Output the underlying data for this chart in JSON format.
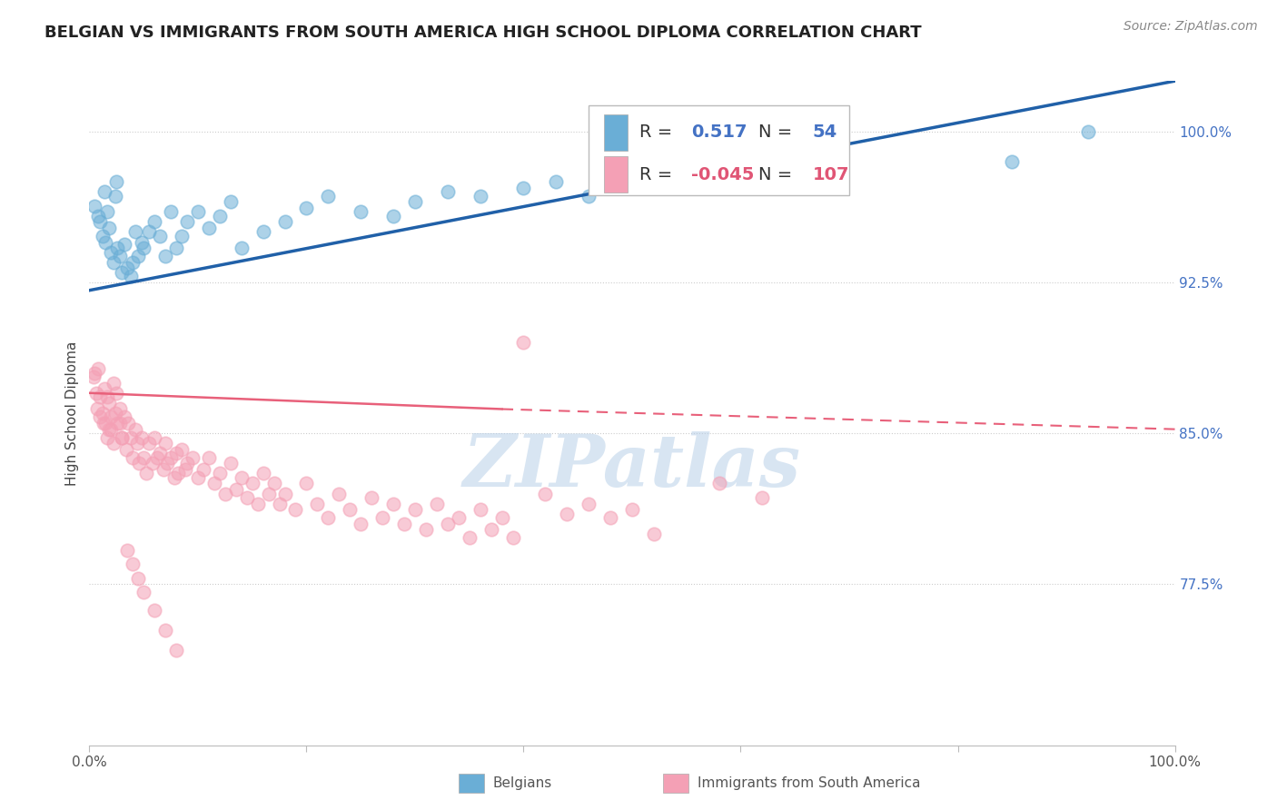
{
  "title": "BELGIAN VS IMMIGRANTS FROM SOUTH AMERICA HIGH SCHOOL DIPLOMA CORRELATION CHART",
  "source": "Source: ZipAtlas.com",
  "ylabel": "High School Diploma",
  "right_ytick_labels": [
    "100.0%",
    "92.5%",
    "85.0%",
    "77.5%"
  ],
  "right_ytick_values": [
    1.0,
    0.925,
    0.85,
    0.775
  ],
  "legend_blue_r": "0.517",
  "legend_blue_n": "54",
  "legend_pink_r": "-0.045",
  "legend_pink_n": "107",
  "blue_color": "#6aaed6",
  "pink_color": "#f4a0b5",
  "blue_line_color": "#2060a8",
  "pink_line_color": "#e8607a",
  "watermark": "ZIPatlas",
  "watermark_color": "#b8d0e8",
  "blue_scatter_x": [
    0.005,
    0.008,
    0.01,
    0.012,
    0.014,
    0.015,
    0.016,
    0.018,
    0.02,
    0.022,
    0.024,
    0.025,
    0.026,
    0.028,
    0.03,
    0.032,
    0.035,
    0.038,
    0.04,
    0.042,
    0.045,
    0.048,
    0.05,
    0.055,
    0.06,
    0.065,
    0.07,
    0.075,
    0.08,
    0.085,
    0.09,
    0.1,
    0.11,
    0.12,
    0.13,
    0.14,
    0.16,
    0.18,
    0.2,
    0.22,
    0.25,
    0.28,
    0.3,
    0.33,
    0.36,
    0.4,
    0.43,
    0.46,
    0.5,
    0.54,
    0.58,
    0.62,
    0.85,
    0.92
  ],
  "blue_scatter_y": [
    0.963,
    0.958,
    0.955,
    0.948,
    0.97,
    0.945,
    0.96,
    0.952,
    0.94,
    0.935,
    0.968,
    0.975,
    0.942,
    0.938,
    0.93,
    0.944,
    0.932,
    0.928,
    0.935,
    0.95,
    0.938,
    0.945,
    0.942,
    0.95,
    0.955,
    0.948,
    0.938,
    0.96,
    0.942,
    0.948,
    0.955,
    0.96,
    0.952,
    0.958,
    0.965,
    0.942,
    0.95,
    0.955,
    0.962,
    0.968,
    0.96,
    0.958,
    0.965,
    0.97,
    0.968,
    0.972,
    0.975,
    0.968,
    0.972,
    0.975,
    0.978,
    0.98,
    0.985,
    1.0
  ],
  "pink_scatter_x": [
    0.004,
    0.006,
    0.008,
    0.01,
    0.012,
    0.014,
    0.015,
    0.016,
    0.018,
    0.02,
    0.022,
    0.024,
    0.026,
    0.028,
    0.03,
    0.032,
    0.034,
    0.036,
    0.038,
    0.04,
    0.042,
    0.044,
    0.046,
    0.048,
    0.05,
    0.052,
    0.055,
    0.058,
    0.06,
    0.062,
    0.065,
    0.068,
    0.07,
    0.072,
    0.075,
    0.078,
    0.08,
    0.082,
    0.085,
    0.088,
    0.09,
    0.095,
    0.1,
    0.105,
    0.11,
    0.115,
    0.12,
    0.125,
    0.13,
    0.135,
    0.14,
    0.145,
    0.15,
    0.155,
    0.16,
    0.165,
    0.17,
    0.175,
    0.18,
    0.19,
    0.2,
    0.21,
    0.22,
    0.23,
    0.24,
    0.25,
    0.26,
    0.27,
    0.28,
    0.29,
    0.3,
    0.31,
    0.32,
    0.33,
    0.34,
    0.35,
    0.36,
    0.37,
    0.38,
    0.39,
    0.4,
    0.42,
    0.44,
    0.46,
    0.48,
    0.5,
    0.52,
    0.58,
    0.62,
    0.005,
    0.007,
    0.01,
    0.013,
    0.016,
    0.018,
    0.02,
    0.022,
    0.025,
    0.028,
    0.03,
    0.035,
    0.04,
    0.045,
    0.05,
    0.06,
    0.07,
    0.08
  ],
  "pink_scatter_y": [
    0.878,
    0.87,
    0.882,
    0.868,
    0.86,
    0.872,
    0.855,
    0.848,
    0.865,
    0.852,
    0.875,
    0.86,
    0.855,
    0.862,
    0.848,
    0.858,
    0.842,
    0.855,
    0.848,
    0.838,
    0.852,
    0.845,
    0.835,
    0.848,
    0.838,
    0.83,
    0.845,
    0.835,
    0.848,
    0.838,
    0.84,
    0.832,
    0.845,
    0.835,
    0.838,
    0.828,
    0.84,
    0.83,
    0.842,
    0.832,
    0.835,
    0.838,
    0.828,
    0.832,
    0.838,
    0.825,
    0.83,
    0.82,
    0.835,
    0.822,
    0.828,
    0.818,
    0.825,
    0.815,
    0.83,
    0.82,
    0.825,
    0.815,
    0.82,
    0.812,
    0.825,
    0.815,
    0.808,
    0.82,
    0.812,
    0.805,
    0.818,
    0.808,
    0.815,
    0.805,
    0.812,
    0.802,
    0.815,
    0.805,
    0.808,
    0.798,
    0.812,
    0.802,
    0.808,
    0.798,
    0.895,
    0.82,
    0.81,
    0.815,
    0.808,
    0.812,
    0.8,
    0.825,
    0.818,
    0.88,
    0.862,
    0.858,
    0.855,
    0.868,
    0.852,
    0.858,
    0.845,
    0.87,
    0.855,
    0.848,
    0.792,
    0.785,
    0.778,
    0.771,
    0.762,
    0.752,
    0.742
  ],
  "xlim": [
    0.0,
    1.0
  ],
  "ylim": [
    0.695,
    1.025
  ],
  "title_fontsize": 13,
  "source_fontsize": 10,
  "axis_label_fontsize": 11,
  "tick_fontsize": 11,
  "legend_fontsize": 14,
  "scatter_size": 110
}
